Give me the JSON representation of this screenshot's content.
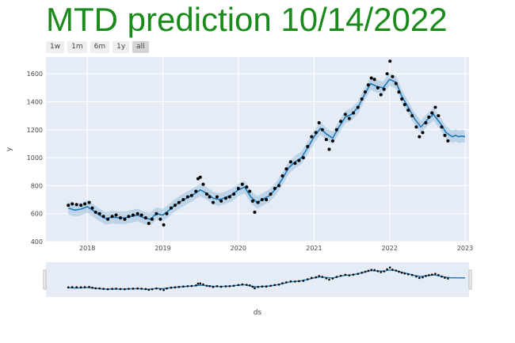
{
  "title": "MTD prediction 10/14/2022",
  "range_selector": {
    "buttons": [
      {
        "label": "1w",
        "active": false
      },
      {
        "label": "1m",
        "active": false
      },
      {
        "label": "6m",
        "active": false
      },
      {
        "label": "1y",
        "active": false
      },
      {
        "label": "all",
        "active": true
      }
    ]
  },
  "colors": {
    "plot_bg": "#e5ecf6",
    "grid": "#ffffff",
    "actual": "#000000",
    "forecast": "#1f77b4",
    "band": "rgba(31,119,180,0.2)",
    "title": "#1a8a1a"
  },
  "chart_data": {
    "type": "scatter",
    "title": "MTD prediction 10/14/2022",
    "xlabel": "ds",
    "ylabel": "y",
    "x_ticks": [
      "2018",
      "2019",
      "2020",
      "2021",
      "2022",
      "2023"
    ],
    "y_ticks": [
      400,
      600,
      800,
      1000,
      1200,
      1400,
      1600
    ],
    "xlim": [
      "2017-06-15",
      "2023-01-20"
    ],
    "ylim": [
      400,
      1720
    ],
    "grid": true,
    "range_slider": true,
    "series": [
      {
        "kind": "actual",
        "points": [
          [
            "2017-10-01",
            660
          ],
          [
            "2017-10-20",
            670
          ],
          [
            "2017-11-10",
            665
          ],
          [
            "2017-12-01",
            660
          ],
          [
            "2017-12-20",
            670
          ],
          [
            "2018-01-10",
            680
          ],
          [
            "2018-01-25",
            640
          ],
          [
            "2018-02-10",
            610
          ],
          [
            "2018-03-01",
            600
          ],
          [
            "2018-03-20",
            580
          ],
          [
            "2018-04-10",
            560
          ],
          [
            "2018-05-01",
            580
          ],
          [
            "2018-05-20",
            590
          ],
          [
            "2018-06-10",
            570
          ],
          [
            "2018-07-01",
            560
          ],
          [
            "2018-07-20",
            580
          ],
          [
            "2018-08-10",
            590
          ],
          [
            "2018-09-01",
            600
          ],
          [
            "2018-09-20",
            590
          ],
          [
            "2018-10-10",
            570
          ],
          [
            "2018-10-25",
            530
          ],
          [
            "2018-11-10",
            560
          ],
          [
            "2018-12-01",
            600
          ],
          [
            "2018-12-20",
            560
          ],
          [
            "2019-01-05",
            520
          ],
          [
            "2019-01-20",
            600
          ],
          [
            "2019-02-10",
            640
          ],
          [
            "2019-03-01",
            660
          ],
          [
            "2019-03-20",
            680
          ],
          [
            "2019-04-10",
            700
          ],
          [
            "2019-05-01",
            720
          ],
          [
            "2019-05-20",
            730
          ],
          [
            "2019-06-10",
            760
          ],
          [
            "2019-06-20",
            850
          ],
          [
            "2019-07-01",
            860
          ],
          [
            "2019-07-15",
            810
          ],
          [
            "2019-08-01",
            740
          ],
          [
            "2019-08-15",
            720
          ],
          [
            "2019-09-01",
            680
          ],
          [
            "2019-09-20",
            720
          ],
          [
            "2019-10-10",
            690
          ],
          [
            "2019-11-01",
            710
          ],
          [
            "2019-11-20",
            720
          ],
          [
            "2019-12-10",
            740
          ],
          [
            "2020-01-01",
            780
          ],
          [
            "2020-01-20",
            810
          ],
          [
            "2020-02-10",
            790
          ],
          [
            "2020-02-25",
            760
          ],
          [
            "2020-03-10",
            690
          ],
          [
            "2020-03-20",
            610
          ],
          [
            "2020-04-05",
            680
          ],
          [
            "2020-04-25",
            700
          ],
          [
            "2020-05-15",
            700
          ],
          [
            "2020-06-05",
            740
          ],
          [
            "2020-06-25",
            780
          ],
          [
            "2020-07-15",
            800
          ],
          [
            "2020-08-01",
            870
          ],
          [
            "2020-08-20",
            920
          ],
          [
            "2020-09-10",
            970
          ],
          [
            "2020-10-01",
            960
          ],
          [
            "2020-10-20",
            980
          ],
          [
            "2020-11-10",
            1000
          ],
          [
            "2020-12-01",
            1080
          ],
          [
            "2020-12-20",
            1150
          ],
          [
            "2021-01-10",
            1180
          ],
          [
            "2021-01-25",
            1250
          ],
          [
            "2021-02-10",
            1200
          ],
          [
            "2021-03-01",
            1130
          ],
          [
            "2021-03-15",
            1060
          ],
          [
            "2021-04-01",
            1120
          ],
          [
            "2021-04-20",
            1200
          ],
          [
            "2021-05-10",
            1260
          ],
          [
            "2021-06-01",
            1310
          ],
          [
            "2021-06-20",
            1280
          ],
          [
            "2021-07-10",
            1320
          ],
          [
            "2021-08-01",
            1360
          ],
          [
            "2021-08-20",
            1420
          ],
          [
            "2021-09-05",
            1470
          ],
          [
            "2021-09-20",
            1520
          ],
          [
            "2021-10-05",
            1570
          ],
          [
            "2021-10-20",
            1560
          ],
          [
            "2021-11-05",
            1500
          ],
          [
            "2021-11-20",
            1450
          ],
          [
            "2021-12-05",
            1490
          ],
          [
            "2021-12-20",
            1600
          ],
          [
            "2022-01-03",
            1690
          ],
          [
            "2022-01-15",
            1580
          ],
          [
            "2022-02-01",
            1530
          ],
          [
            "2022-02-15",
            1470
          ],
          [
            "2022-03-01",
            1420
          ],
          [
            "2022-03-15",
            1380
          ],
          [
            "2022-04-01",
            1340
          ],
          [
            "2022-04-20",
            1300
          ],
          [
            "2022-05-10",
            1220
          ],
          [
            "2022-05-25",
            1150
          ],
          [
            "2022-06-10",
            1180
          ],
          [
            "2022-06-25",
            1250
          ],
          [
            "2022-07-10",
            1290
          ],
          [
            "2022-07-25",
            1320
          ],
          [
            "2022-08-10",
            1360
          ],
          [
            "2022-08-25",
            1300
          ],
          [
            "2022-09-10",
            1220
          ],
          [
            "2022-09-25",
            1160
          ],
          [
            "2022-10-10",
            1120
          ]
        ]
      },
      {
        "kind": "forecast",
        "points": [
          [
            "2017-10-01",
            640
          ],
          [
            "2017-11-01",
            625
          ],
          [
            "2017-12-01",
            632
          ],
          [
            "2018-01-01",
            650
          ],
          [
            "2018-02-01",
            620
          ],
          [
            "2018-03-01",
            590
          ],
          [
            "2018-04-01",
            565
          ],
          [
            "2018-05-01",
            575
          ],
          [
            "2018-06-01",
            570
          ],
          [
            "2018-07-01",
            570
          ],
          [
            "2018-08-01",
            580
          ],
          [
            "2018-09-01",
            590
          ],
          [
            "2018-10-01",
            570
          ],
          [
            "2018-11-01",
            560
          ],
          [
            "2018-12-01",
            600
          ],
          [
            "2019-01-01",
            590
          ],
          [
            "2019-02-01",
            625
          ],
          [
            "2019-03-01",
            660
          ],
          [
            "2019-04-01",
            690
          ],
          [
            "2019-05-01",
            715
          ],
          [
            "2019-06-01",
            740
          ],
          [
            "2019-07-01",
            770
          ],
          [
            "2019-08-01",
            745
          ],
          [
            "2019-09-01",
            710
          ],
          [
            "2019-10-01",
            700
          ],
          [
            "2019-11-01",
            715
          ],
          [
            "2019-12-01",
            735
          ],
          [
            "2020-01-01",
            770
          ],
          [
            "2020-02-01",
            790
          ],
          [
            "2020-03-01",
            720
          ],
          [
            "2020-04-01",
            680
          ],
          [
            "2020-05-01",
            705
          ],
          [
            "2020-06-01",
            730
          ],
          [
            "2020-07-01",
            780
          ],
          [
            "2020-08-01",
            850
          ],
          [
            "2020-09-01",
            930
          ],
          [
            "2020-10-01",
            970
          ],
          [
            "2020-11-01",
            1000
          ],
          [
            "2020-12-01",
            1070
          ],
          [
            "2021-01-01",
            1150
          ],
          [
            "2021-02-01",
            1210
          ],
          [
            "2021-03-01",
            1170
          ],
          [
            "2021-04-01",
            1140
          ],
          [
            "2021-05-01",
            1220
          ],
          [
            "2021-06-01",
            1290
          ],
          [
            "2021-07-01",
            1310
          ],
          [
            "2021-08-01",
            1360
          ],
          [
            "2021-09-01",
            1450
          ],
          [
            "2021-10-01",
            1530
          ],
          [
            "2021-11-01",
            1510
          ],
          [
            "2021-12-01",
            1500
          ],
          [
            "2022-01-01",
            1560
          ],
          [
            "2022-02-01",
            1540
          ],
          [
            "2022-03-01",
            1440
          ],
          [
            "2022-04-01",
            1360
          ],
          [
            "2022-05-01",
            1280
          ],
          [
            "2022-06-01",
            1220
          ],
          [
            "2022-07-01",
            1270
          ],
          [
            "2022-08-01",
            1310
          ],
          [
            "2022-09-01",
            1250
          ],
          [
            "2022-10-01",
            1180
          ],
          [
            "2022-10-20",
            1160
          ],
          [
            "2022-11-01",
            1150
          ],
          [
            "2022-11-15",
            1160
          ],
          [
            "2022-12-01",
            1150
          ],
          [
            "2022-12-15",
            1155
          ],
          [
            "2023-01-01",
            1150
          ]
        ],
        "band_halfwidth": 45
      }
    ]
  },
  "range_slider": {
    "colors": {
      "bg": "#e5ecf6",
      "border": "#bbbbbb"
    }
  }
}
